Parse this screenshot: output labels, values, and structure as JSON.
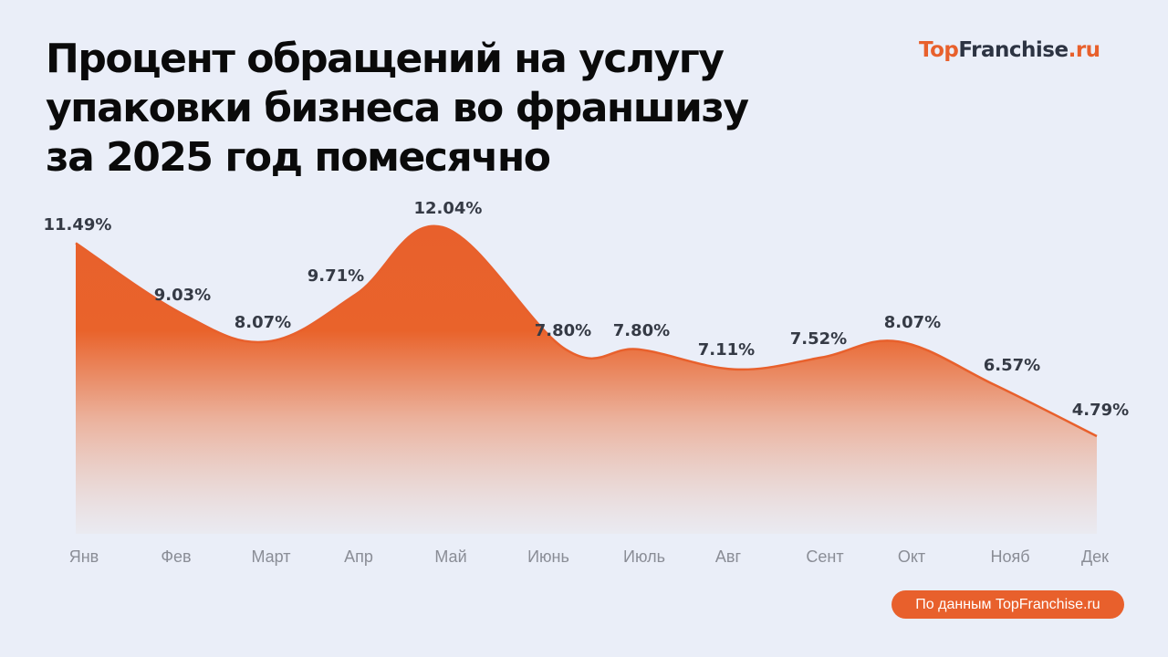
{
  "header": {
    "title_lines": [
      "Процент обращений на услугу",
      "упаковки бизнеса во франшизу",
      "за 2025 год помесячно"
    ],
    "logo": {
      "part1": "Top",
      "part2": "Franchise",
      "part3": ".ru"
    }
  },
  "footer": {
    "source": "По данным TopFranchise.ru"
  },
  "colors": {
    "accent": "#e8602c",
    "background": "#eaeef8",
    "text": "#0a0a0a",
    "label": "#353a45",
    "axis": "#8a8d96"
  },
  "chart_data": {
    "type": "area",
    "title": "Процент обращений на услугу упаковки бизнеса во франшизу за 2025 год помесячно",
    "xlabel": "",
    "ylabel": "",
    "categories": [
      "Янв",
      "Фев",
      "Март",
      "Апр",
      "Май",
      "Июнь",
      "Июль",
      "Авг",
      "Сент",
      "Окт",
      "Нояб",
      "Дек"
    ],
    "values": [
      11.49,
      9.03,
      8.07,
      9.71,
      12.04,
      7.8,
      7.8,
      7.11,
      7.52,
      8.07,
      6.57,
      4.79
    ],
    "labels": [
      "11.49%",
      "9.03%",
      "8.07%",
      "9.71%",
      "12.04%",
      "7.80%",
      "7.80%",
      "7.11%",
      "7.52%",
      "8.07%",
      "6.57%",
      "4.79%"
    ],
    "unit": "%",
    "grid": false,
    "legend": "none"
  }
}
